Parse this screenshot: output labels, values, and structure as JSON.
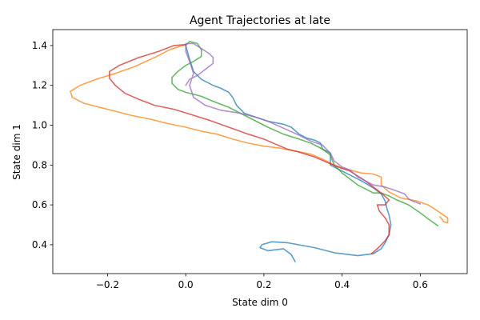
{
  "chart_data": {
    "type": "line",
    "title": "Agent Trajectories at late",
    "xlabel": "State dim 0",
    "ylabel": "State dim 1",
    "xlim": [
      -0.34,
      0.72
    ],
    "ylim": [
      0.255,
      1.48
    ],
    "xticks": [
      -0.2,
      0.0,
      0.2,
      0.4,
      0.6
    ],
    "yticks": [
      0.4,
      0.6,
      0.8,
      1.0,
      1.2,
      1.4
    ],
    "xtick_labels": [
      "−0.2",
      "0.0",
      "0.2",
      "0.4",
      "0.6"
    ],
    "ytick_labels": [
      "0.4",
      "0.6",
      "0.8",
      "1.0",
      "1.2",
      "1.4"
    ],
    "grid": false,
    "legend": false,
    "series": [
      {
        "color": "#1f77b4",
        "points": [
          [
            0.0,
            1.4
          ],
          [
            0.01,
            1.33
          ],
          [
            0.02,
            1.27
          ],
          [
            0.04,
            1.23
          ],
          [
            0.07,
            1.2
          ],
          [
            0.09,
            1.185
          ],
          [
            0.11,
            1.165
          ],
          [
            0.12,
            1.14
          ],
          [
            0.13,
            1.1
          ],
          [
            0.15,
            1.06
          ],
          [
            0.18,
            1.04
          ],
          [
            0.21,
            1.02
          ],
          [
            0.25,
            1.005
          ],
          [
            0.27,
            0.99
          ],
          [
            0.29,
            0.955
          ],
          [
            0.31,
            0.935
          ],
          [
            0.33,
            0.925
          ],
          [
            0.345,
            0.91
          ],
          [
            0.35,
            0.88
          ],
          [
            0.37,
            0.86
          ],
          [
            0.37,
            0.8
          ],
          [
            0.4,
            0.77
          ],
          [
            0.42,
            0.75
          ],
          [
            0.45,
            0.72
          ],
          [
            0.48,
            0.685
          ],
          [
            0.5,
            0.655
          ],
          [
            0.51,
            0.62
          ],
          [
            0.515,
            0.58
          ],
          [
            0.52,
            0.55
          ],
          [
            0.525,
            0.5
          ],
          [
            0.52,
            0.45
          ],
          [
            0.51,
            0.41
          ],
          [
            0.5,
            0.38
          ],
          [
            0.48,
            0.355
          ],
          [
            0.44,
            0.345
          ],
          [
            0.38,
            0.36
          ],
          [
            0.33,
            0.385
          ],
          [
            0.26,
            0.41
          ],
          [
            0.22,
            0.415
          ],
          [
            0.195,
            0.4
          ],
          [
            0.19,
            0.385
          ],
          [
            0.21,
            0.37
          ],
          [
            0.25,
            0.38
          ],
          [
            0.27,
            0.35
          ],
          [
            0.28,
            0.315
          ]
        ]
      },
      {
        "color": "#ff7f0e",
        "points": [
          [
            0.0,
            1.405
          ],
          [
            -0.04,
            1.38
          ],
          [
            -0.08,
            1.34
          ],
          [
            -0.13,
            1.295
          ],
          [
            -0.18,
            1.26
          ],
          [
            -0.23,
            1.23
          ],
          [
            -0.27,
            1.2
          ],
          [
            -0.295,
            1.17
          ],
          [
            -0.29,
            1.14
          ],
          [
            -0.26,
            1.11
          ],
          [
            -0.22,
            1.09
          ],
          [
            -0.18,
            1.07
          ],
          [
            -0.14,
            1.05
          ],
          [
            -0.09,
            1.03
          ],
          [
            -0.05,
            1.01
          ],
          [
            0.0,
            0.99
          ],
          [
            0.04,
            0.97
          ],
          [
            0.08,
            0.955
          ],
          [
            0.12,
            0.93
          ],
          [
            0.16,
            0.91
          ],
          [
            0.2,
            0.895
          ],
          [
            0.24,
            0.885
          ],
          [
            0.28,
            0.87
          ],
          [
            0.32,
            0.855
          ],
          [
            0.35,
            0.83
          ],
          [
            0.38,
            0.8
          ],
          [
            0.4,
            0.785
          ],
          [
            0.43,
            0.77
          ],
          [
            0.45,
            0.76
          ],
          [
            0.48,
            0.755
          ],
          [
            0.5,
            0.74
          ],
          [
            0.5,
            0.7
          ],
          [
            0.52,
            0.665
          ],
          [
            0.55,
            0.635
          ],
          [
            0.59,
            0.62
          ],
          [
            0.62,
            0.6
          ],
          [
            0.64,
            0.575
          ],
          [
            0.655,
            0.555
          ],
          [
            0.67,
            0.535
          ],
          [
            0.67,
            0.51
          ],
          [
            0.66,
            0.515
          ],
          [
            0.655,
            0.53
          ],
          [
            0.65,
            0.54
          ]
        ]
      },
      {
        "color": "#2ca02c",
        "points": [
          [
            0.645,
            0.495
          ],
          [
            0.62,
            0.53
          ],
          [
            0.6,
            0.56
          ],
          [
            0.57,
            0.6
          ],
          [
            0.54,
            0.625
          ],
          [
            0.52,
            0.645
          ],
          [
            0.5,
            0.66
          ],
          [
            0.48,
            0.66
          ],
          [
            0.46,
            0.68
          ],
          [
            0.44,
            0.7
          ],
          [
            0.42,
            0.73
          ],
          [
            0.4,
            0.76
          ],
          [
            0.38,
            0.8
          ],
          [
            0.37,
            0.85
          ],
          [
            0.35,
            0.88
          ],
          [
            0.32,
            0.91
          ],
          [
            0.29,
            0.93
          ],
          [
            0.25,
            0.955
          ],
          [
            0.21,
            0.99
          ],
          [
            0.17,
            1.03
          ],
          [
            0.14,
            1.06
          ],
          [
            0.11,
            1.09
          ],
          [
            0.07,
            1.12
          ],
          [
            0.04,
            1.145
          ],
          [
            0.02,
            1.155
          ],
          [
            0.0,
            1.165
          ],
          [
            -0.02,
            1.18
          ],
          [
            -0.035,
            1.21
          ],
          [
            -0.035,
            1.24
          ],
          [
            -0.02,
            1.27
          ],
          [
            0.0,
            1.3
          ],
          [
            0.02,
            1.32
          ],
          [
            0.04,
            1.345
          ],
          [
            0.04,
            1.38
          ],
          [
            0.03,
            1.41
          ],
          [
            0.01,
            1.42
          ],
          [
            0.0,
            1.4
          ]
        ]
      },
      {
        "color": "#d62728",
        "points": [
          [
            0.0,
            1.405
          ],
          [
            -0.03,
            1.4
          ],
          [
            -0.07,
            1.37
          ],
          [
            -0.12,
            1.34
          ],
          [
            -0.17,
            1.3
          ],
          [
            -0.195,
            1.27
          ],
          [
            -0.195,
            1.235
          ],
          [
            -0.18,
            1.2
          ],
          [
            -0.155,
            1.16
          ],
          [
            -0.12,
            1.13
          ],
          [
            -0.08,
            1.1
          ],
          [
            -0.03,
            1.08
          ],
          [
            0.02,
            1.05
          ],
          [
            0.06,
            1.025
          ],
          [
            0.11,
            0.99
          ],
          [
            0.16,
            0.955
          ],
          [
            0.2,
            0.93
          ],
          [
            0.23,
            0.905
          ],
          [
            0.26,
            0.88
          ],
          [
            0.29,
            0.865
          ],
          [
            0.33,
            0.84
          ],
          [
            0.36,
            0.815
          ],
          [
            0.39,
            0.79
          ],
          [
            0.42,
            0.77
          ],
          [
            0.44,
            0.745
          ],
          [
            0.46,
            0.72
          ],
          [
            0.48,
            0.69
          ],
          [
            0.5,
            0.66
          ],
          [
            0.52,
            0.625
          ],
          [
            0.51,
            0.6
          ],
          [
            0.49,
            0.6
          ],
          [
            0.495,
            0.57
          ],
          [
            0.51,
            0.535
          ],
          [
            0.52,
            0.5
          ],
          [
            0.52,
            0.45
          ],
          [
            0.51,
            0.42
          ],
          [
            0.49,
            0.38
          ],
          [
            0.475,
            0.355
          ]
        ]
      },
      {
        "color": "#9467bd",
        "points": [
          [
            0.0,
            1.2
          ],
          [
            0.01,
            1.23
          ],
          [
            0.03,
            1.25
          ],
          [
            0.05,
            1.28
          ],
          [
            0.07,
            1.31
          ],
          [
            0.07,
            1.34
          ],
          [
            0.06,
            1.36
          ],
          [
            0.04,
            1.385
          ],
          [
            0.02,
            1.41
          ],
          [
            0.0,
            1.41
          ],
          [
            0.0,
            1.37
          ],
          [
            0.01,
            1.32
          ],
          [
            0.02,
            1.26
          ],
          [
            0.01,
            1.2
          ],
          [
            0.02,
            1.14
          ],
          [
            0.05,
            1.1
          ],
          [
            0.09,
            1.075
          ],
          [
            0.14,
            1.06
          ],
          [
            0.18,
            1.04
          ],
          [
            0.21,
            1.02
          ],
          [
            0.25,
            0.985
          ],
          [
            0.29,
            0.95
          ],
          [
            0.32,
            0.92
          ],
          [
            0.35,
            0.9
          ],
          [
            0.37,
            0.86
          ],
          [
            0.38,
            0.82
          ],
          [
            0.4,
            0.79
          ],
          [
            0.42,
            0.775
          ],
          [
            0.44,
            0.74
          ],
          [
            0.46,
            0.72
          ],
          [
            0.48,
            0.7
          ],
          [
            0.51,
            0.69
          ],
          [
            0.54,
            0.67
          ],
          [
            0.56,
            0.655
          ],
          [
            0.57,
            0.63
          ],
          [
            0.58,
            0.62
          ],
          [
            0.6,
            0.605
          ]
        ]
      }
    ]
  }
}
